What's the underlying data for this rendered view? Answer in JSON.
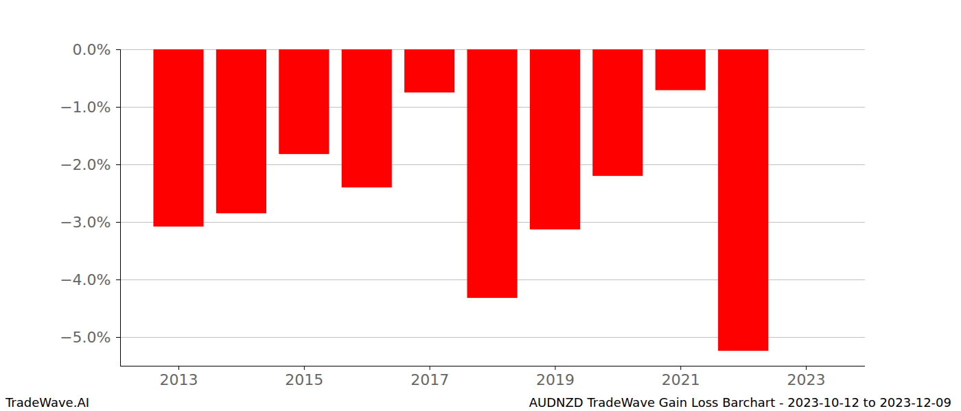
{
  "chart_data": {
    "type": "bar",
    "title": "AUDNZD TradeWave Gain Loss Barchart - 2023-10-12 to 2023-12-09",
    "source": "TradeWave.AI",
    "x": [
      2013,
      2014,
      2015,
      2016,
      2017,
      2018,
      2019,
      2020,
      2021,
      2022
    ],
    "values": [
      -3.08,
      -2.85,
      -1.82,
      -2.4,
      -0.75,
      -4.32,
      -3.13,
      -2.2,
      -0.71,
      -5.24
    ],
    "color": "#ff0000",
    "xlim": [
      2012.07,
      2023.94
    ],
    "xticks": [
      2013,
      2015,
      2017,
      2019,
      2021,
      2023
    ],
    "ylim": [
      -5.5,
      0
    ],
    "yticks": [
      {
        "value": 0,
        "label": "0.0%"
      },
      {
        "value": -1,
        "label": "−1.0%"
      },
      {
        "value": -2,
        "label": "−2.0%"
      },
      {
        "value": -3,
        "label": "−3.0%"
      },
      {
        "value": -4,
        "label": "−4.0%"
      },
      {
        "value": -5,
        "label": "−5.0%"
      }
    ],
    "grid": true
  }
}
